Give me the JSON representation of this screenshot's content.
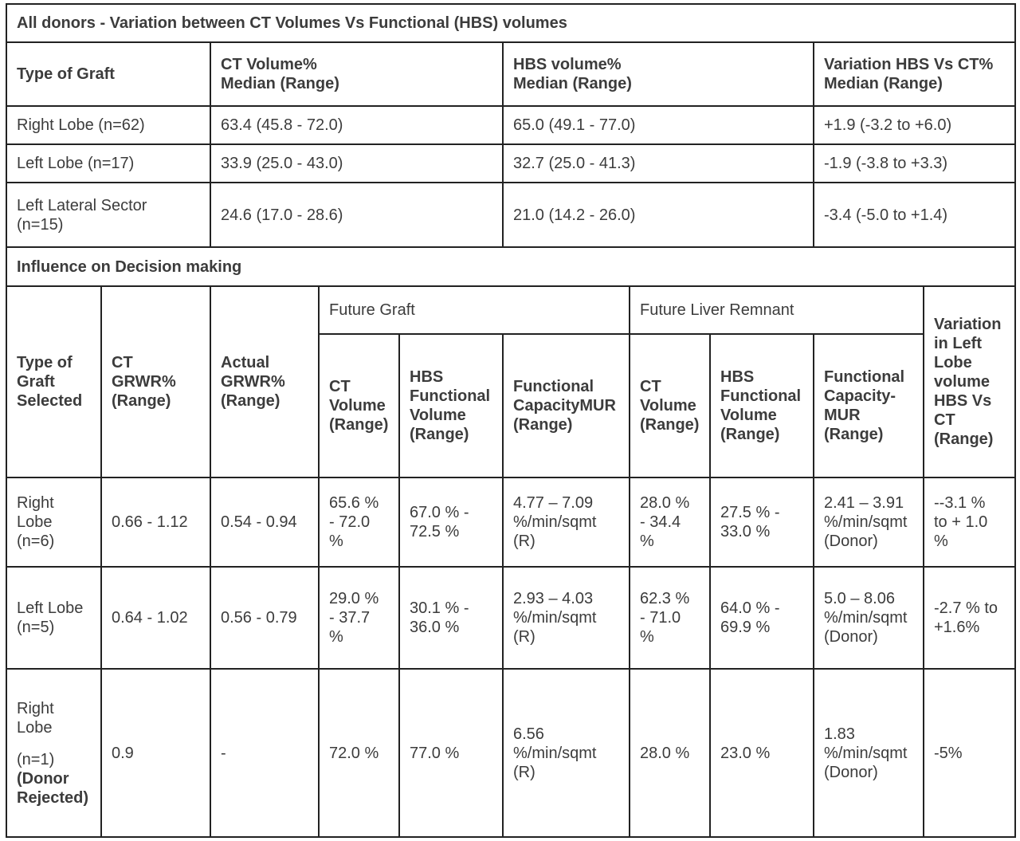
{
  "part1": {
    "title": "All donors - Variation between CT Volumes Vs Functional (HBS) volumes",
    "headers": {
      "type_of_graft": "Type of Graft",
      "ct_volume": "CT Volume%\nMedian (Range)",
      "hbs_volume": "HBS volume%\nMedian (Range)",
      "variation": "Variation HBS Vs CT%\nMedian (Range)"
    },
    "rows": [
      {
        "graft": "Right Lobe (n=62)",
        "ct": "63.4 (45.8 - 72.0)",
        "hbs": "65.0 (49.1 - 77.0)",
        "var": "+1.9 (-3.2 to +6.0)"
      },
      {
        "graft": "Left Lobe (n=17)",
        "ct": "33.9 (25.0 - 43.0)",
        "hbs": "32.7 (25.0 - 41.3)",
        "var": "-1.9 (-3.8 to +3.3)"
      },
      {
        "graft": "Left Lateral Sector\n(n=15)",
        "ct": "24.6 (17.0 - 28.6)",
        "hbs": "21.0 (14.2 - 26.0)",
        "var": "-3.4 (-5.0 to +1.4)"
      }
    ]
  },
  "part2": {
    "title": "Influence on Decision making",
    "group_headers": {
      "future_graft": "Future Graft",
      "future_liver_remnant": "Future Liver Remnant"
    },
    "headers": {
      "type_selected": "Type of\nGraft\nSelected",
      "ct_grwr": "CT\nGRWR%\n(Range)",
      "actual_grwr": "Actual\nGRWR%\n(Range)",
      "fg_ct_volume": "CT\nVolume\n(Range)",
      "fg_hbs_volume": "HBS\nFunctional\nVolume\n(Range)",
      "fg_functional": "Functional\nCapacityMUR\n(Range)",
      "flr_ct_volume": "CT\nVolume\n(Range)",
      "flr_hbs_volume": "HBS\nFunctional\nVolume\n(Range)",
      "flr_functional": "Functional\nCapacity-\nMUR\n(Range)",
      "variation": "Variation\nin Left\nLobe\nvolume\nHBS Vs\nCT\n(Range)"
    },
    "rows": [
      {
        "type": "Right\nLobe\n(n=6)",
        "ct_grwr": "0.66 - 1.12",
        "actual_grwr": "0.54 - 0.94",
        "fg_ct": "65.6 %\n- 72.0\n%",
        "fg_hbs": "67.0 % -\n72.5 %",
        "fg_func": "4.77 – 7.09\n%/min/sqmt\n(R)",
        "flr_ct": "28.0 %\n- 34.4\n%",
        "flr_hbs": "27.5 % -\n33.0 %",
        "flr_func": "2.41 – 3.91\n%/min/sqmt\n(Donor)",
        "variation": "--3.1 %\nto + 1.0\n%"
      },
      {
        "type": "Left Lobe\n(n=5)",
        "ct_grwr": "0.64 - 1.02",
        "actual_grwr": "0.56 - 0.79",
        "fg_ct": "29.0 %\n- 37.7\n%",
        "fg_hbs": "30.1 % -\n36.0 %",
        "fg_func": "2.93 – 4.03\n%/min/sqmt\n(R)",
        "flr_ct": "62.3 %\n- 71.0\n%",
        "flr_hbs": "64.0 % -\n69.9 %",
        "flr_func": "5.0 – 8.06\n%/min/sqmt\n(Donor)",
        "variation": "-2.7 % to\n+1.6%"
      },
      {
        "type_line1": "Right\nLobe",
        "type_line2": "(n=1)",
        "type_line3": "(Donor\nRejected)",
        "ct_grwr": "0.9",
        "actual_grwr": "-",
        "fg_ct": "72.0 %",
        "fg_hbs": "77.0 %",
        "fg_func": "6.56\n%/min/sqmt\n(R)",
        "flr_ct": "28.0 %",
        "flr_hbs": "23.0 %",
        "flr_func": "1.83\n%/min/sqmt\n(Donor)",
        "variation": "-5%"
      }
    ]
  }
}
